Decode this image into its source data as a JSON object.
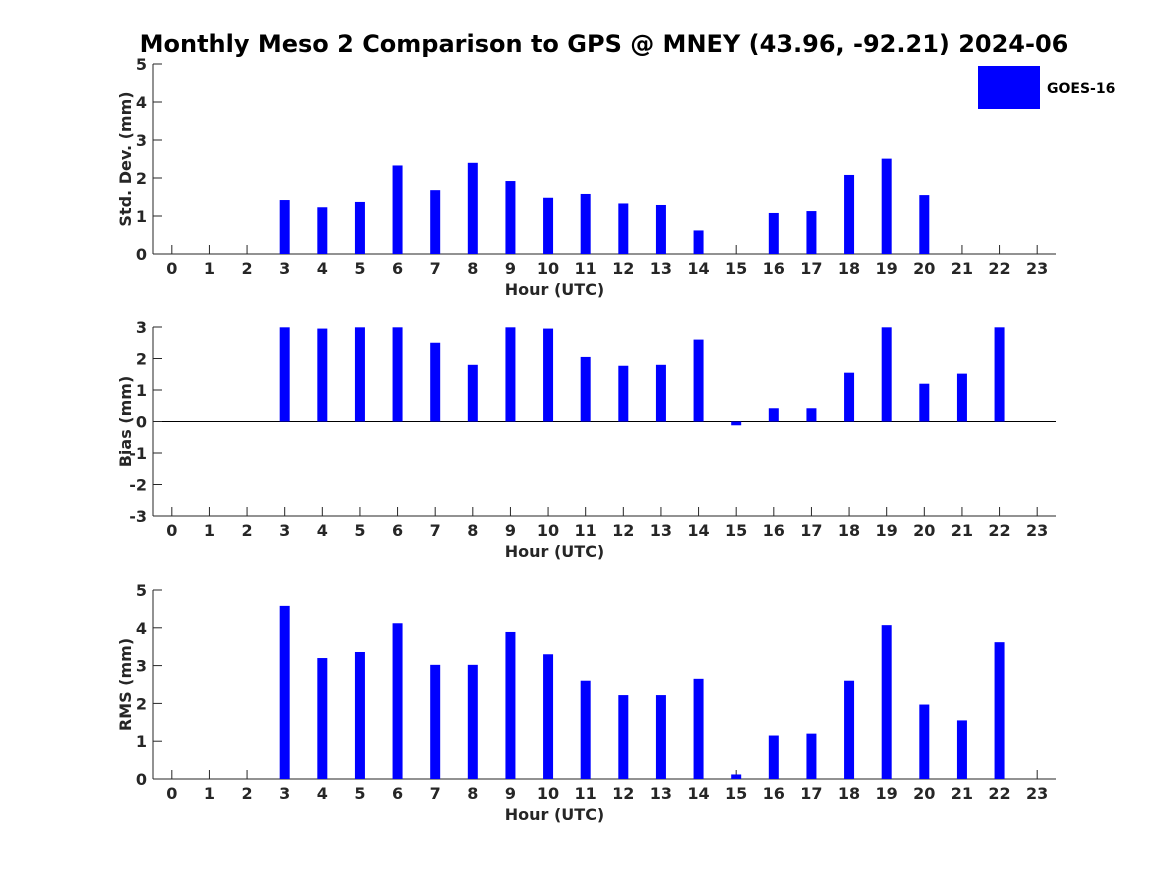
{
  "figure": {
    "title": "Monthly Meso 2 Comparison to GPS @ MNEY (43.96, -92.21) 2024-06"
  },
  "legend": {
    "label": "GOES-16",
    "color": "#0000ff",
    "placement": "top-right"
  },
  "chart_data": [
    {
      "type": "bar",
      "name": "std-dev",
      "xlabel": "Hour (UTC)",
      "ylabel": "Std. Dev. (mm)",
      "ylim": [
        0,
        5
      ],
      "yticks": [
        0,
        1,
        2,
        3,
        4,
        5
      ],
      "xticks": [
        0,
        1,
        2,
        3,
        4,
        5,
        6,
        7,
        8,
        9,
        10,
        11,
        12,
        13,
        14,
        15,
        16,
        17,
        18,
        19,
        20,
        21,
        22,
        23
      ],
      "x": [
        0,
        1,
        2,
        3,
        4,
        5,
        6,
        7,
        8,
        9,
        10,
        11,
        12,
        13,
        14,
        15,
        16,
        17,
        18,
        19,
        20,
        21,
        22,
        23
      ],
      "series": [
        {
          "color": "#0000ff",
          "values": [
            null,
            null,
            null,
            1.42,
            1.23,
            1.37,
            2.33,
            1.68,
            2.4,
            1.92,
            1.48,
            1.58,
            1.33,
            1.29,
            0.62,
            null,
            1.08,
            1.13,
            2.08,
            2.51,
            1.55,
            null,
            null,
            null
          ]
        }
      ],
      "grid": false
    },
    {
      "type": "bar",
      "name": "bias",
      "xlabel": "Hour (UTC)",
      "ylabel": "Bias (mm)",
      "ylim": [
        -3,
        3
      ],
      "yticks": [
        -3,
        -2,
        -1,
        0,
        1,
        2,
        3
      ],
      "xticks": [
        0,
        1,
        2,
        3,
        4,
        5,
        6,
        7,
        8,
        9,
        10,
        11,
        12,
        13,
        14,
        15,
        16,
        17,
        18,
        19,
        20,
        21,
        22,
        23
      ],
      "x": [
        0,
        1,
        2,
        3,
        4,
        5,
        6,
        7,
        8,
        9,
        10,
        11,
        12,
        13,
        14,
        15,
        16,
        17,
        18,
        19,
        20,
        21,
        22,
        23
      ],
      "series": [
        {
          "color": "#0000ff",
          "values": [
            null,
            null,
            null,
            2.99,
            2.95,
            2.99,
            2.99,
            2.5,
            1.8,
            2.99,
            2.95,
            2.05,
            1.77,
            1.8,
            2.6,
            -0.12,
            0.42,
            0.42,
            1.55,
            2.99,
            1.2,
            1.52,
            2.99,
            null
          ]
        }
      ],
      "grid": false
    },
    {
      "type": "bar",
      "name": "rms",
      "xlabel": "Hour (UTC)",
      "ylabel": "RMS (mm)",
      "ylim": [
        0,
        5
      ],
      "yticks": [
        0,
        1,
        2,
        3,
        4,
        5
      ],
      "xticks": [
        0,
        1,
        2,
        3,
        4,
        5,
        6,
        7,
        8,
        9,
        10,
        11,
        12,
        13,
        14,
        15,
        16,
        17,
        18,
        19,
        20,
        21,
        22,
        23
      ],
      "x": [
        0,
        1,
        2,
        3,
        4,
        5,
        6,
        7,
        8,
        9,
        10,
        11,
        12,
        13,
        14,
        15,
        16,
        17,
        18,
        19,
        20,
        21,
        22,
        23
      ],
      "series": [
        {
          "color": "#0000ff",
          "values": [
            null,
            null,
            null,
            4.58,
            3.2,
            3.36,
            4.12,
            3.02,
            3.02,
            3.89,
            3.3,
            2.6,
            2.22,
            2.22,
            2.65,
            0.12,
            1.15,
            1.2,
            2.6,
            4.07,
            1.97,
            1.55,
            3.62,
            null
          ]
        }
      ],
      "grid": false
    }
  ]
}
